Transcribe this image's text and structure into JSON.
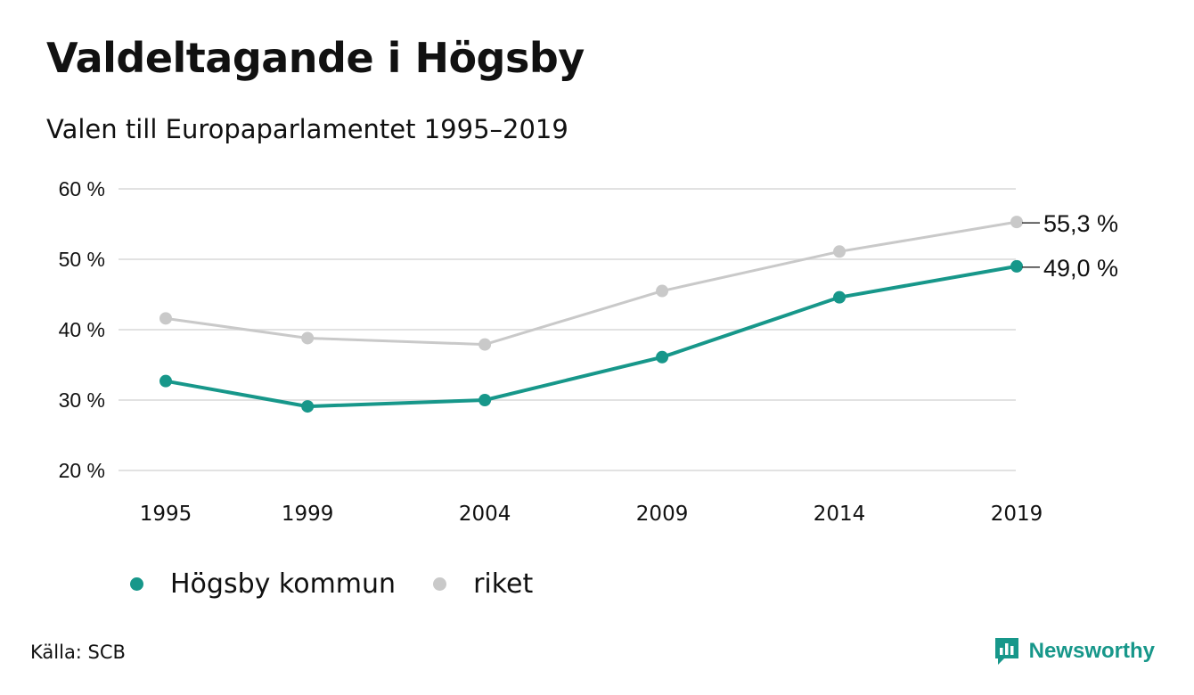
{
  "colors": {
    "accent": "#17978a",
    "secondary": "#c9c9c9",
    "grid": "#e2e2e2",
    "text": "#111111"
  },
  "source": "Källa: SCB",
  "brand": {
    "name": "Newsworthy",
    "icon": "newsworthy-logo-icon"
  },
  "chart_data": {
    "type": "line",
    "title": "Valdeltagande i Högsby",
    "subtitle": "Valen till Europaparlamentet 1995–2019",
    "x": [
      "1995",
      "1999",
      "2004",
      "2009",
      "2014",
      "2019"
    ],
    "series": [
      {
        "name": "Högsby kommun",
        "color": "#17978a",
        "values": [
          32.7,
          29.1,
          30.0,
          36.1,
          44.6,
          49.0
        ],
        "end_label": "49,0 %"
      },
      {
        "name": "riket",
        "color": "#c9c9c9",
        "values": [
          41.6,
          38.8,
          37.9,
          45.5,
          51.1,
          55.3
        ],
        "end_label": "55,3 %"
      }
    ],
    "ylim": [
      20,
      60
    ],
    "yticks": [
      {
        "value": 60,
        "label": "60 %"
      },
      {
        "value": 50,
        "label": "50 %"
      },
      {
        "value": 40,
        "label": "40 %"
      },
      {
        "value": 30,
        "label": "30 %"
      },
      {
        "value": 20,
        "label": "20 %"
      }
    ],
    "grid": true,
    "legend_position": "bottom-left"
  }
}
